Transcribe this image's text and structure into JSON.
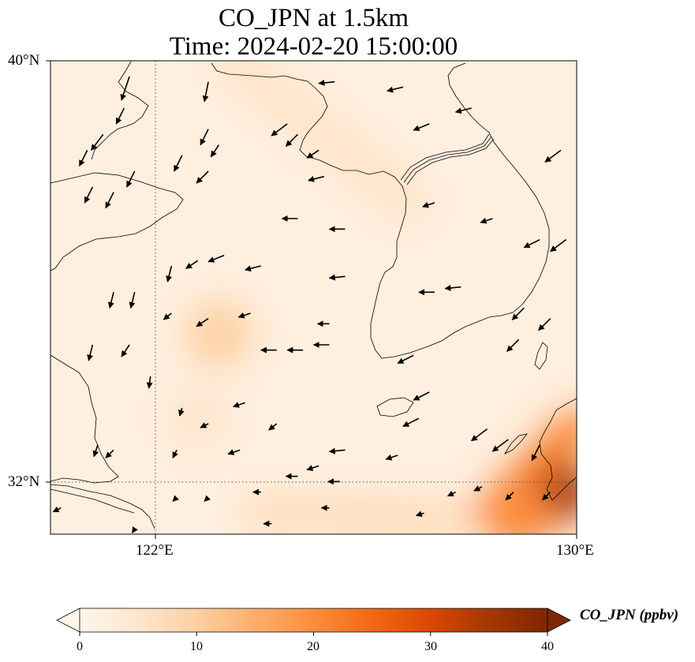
{
  "title": {
    "line1": "CO_JPN at 1.5km",
    "line2": "Time: 2024-02-20 15:00:00"
  },
  "map": {
    "lat_range": [
      31.0,
      40.0
    ],
    "lon_range": [
      120.0,
      130.0
    ],
    "lat_ticks": [
      {
        "value": 40,
        "label": "40°N"
      },
      {
        "value": 32,
        "label": "32°N"
      }
    ],
    "lon_ticks": [
      {
        "value": 122,
        "label": "122°E"
      },
      {
        "value": 130,
        "label": "130°E"
      }
    ],
    "gridlines": "dotted"
  },
  "colorbar": {
    "title": "CO_JPN (ppbv)",
    "min": 0,
    "max": 40,
    "extend": "both",
    "ticks": [
      "0",
      "10",
      "20",
      "30",
      "40"
    ],
    "colormap": [
      "#fff5eb",
      "#fee6ce",
      "#fdd0a2",
      "#fdae6b",
      "#fd8d3c",
      "#f16913",
      "#d94801",
      "#a63603",
      "#7f2704"
    ]
  },
  "chart_data": {
    "type": "heatmap",
    "variable": "CO_JPN",
    "units": "ppbv",
    "level": "1.5km",
    "time": "2024-02-20 15:00:00",
    "background_value": 2,
    "features": [
      {
        "shape": "band",
        "lon": [
          123.5,
          126.8
        ],
        "lat": [
          40.0,
          37.3
        ],
        "value": 6
      },
      {
        "shape": "blob",
        "lon": 123.2,
        "lat": 34.8,
        "value": 10
      },
      {
        "shape": "blob",
        "lon": 122.8,
        "lat": 33.2,
        "value": 5
      },
      {
        "shape": "band",
        "lon": [
          124.0,
          128.0
        ],
        "lat": [
          31.4,
          31.3
        ],
        "value": 7
      },
      {
        "shape": "band",
        "lon": [
          128.4,
          130.0
        ],
        "lat": [
          31.4,
          33.0
        ],
        "value": 22
      },
      {
        "shape": "blob",
        "lon": 129.8,
        "lat": 31.8,
        "value": 38
      },
      {
        "shape": "blob",
        "lon": 129.3,
        "lat": 31.5,
        "value": 32
      },
      {
        "shape": "blob",
        "lon": 128.9,
        "lat": 31.3,
        "value": 20
      }
    ],
    "wind_vectors": [
      {
        "lon": 121.5,
        "lat": 39.7,
        "u": -1,
        "v": -3
      },
      {
        "lon": 121.4,
        "lat": 39.1,
        "u": -1,
        "v": -2
      },
      {
        "lon": 123.0,
        "lat": 39.6,
        "u": -0.5,
        "v": -2.5
      },
      {
        "lon": 121.0,
        "lat": 38.6,
        "u": -1.5,
        "v": -2
      },
      {
        "lon": 120.7,
        "lat": 38.3,
        "u": -1,
        "v": -2
      },
      {
        "lon": 123.0,
        "lat": 38.7,
        "u": -1,
        "v": -2
      },
      {
        "lon": 122.5,
        "lat": 38.2,
        "u": -1,
        "v": -2
      },
      {
        "lon": 123.2,
        "lat": 38.4,
        "u": -1,
        "v": -1.5
      },
      {
        "lon": 124.5,
        "lat": 38.8,
        "u": -2,
        "v": -1.5
      },
      {
        "lon": 124.7,
        "lat": 38.6,
        "u": -1.5,
        "v": -1.5
      },
      {
        "lon": 123.0,
        "lat": 37.9,
        "u": -1.5,
        "v": -1.5
      },
      {
        "lon": 121.6,
        "lat": 37.9,
        "u": -1,
        "v": -2
      },
      {
        "lon": 120.8,
        "lat": 37.6,
        "u": -1,
        "v": -2
      },
      {
        "lon": 121.2,
        "lat": 37.5,
        "u": -1,
        "v": -2
      },
      {
        "lon": 125.4,
        "lat": 39.6,
        "u": -2,
        "v": -0.2
      },
      {
        "lon": 126.7,
        "lat": 39.5,
        "u": -2,
        "v": -0.5
      },
      {
        "lon": 128.0,
        "lat": 39.1,
        "u": -2,
        "v": -0.5
      },
      {
        "lon": 127.2,
        "lat": 38.8,
        "u": -2,
        "v": -0.8
      },
      {
        "lon": 125.1,
        "lat": 38.3,
        "u": -1.5,
        "v": -1
      },
      {
        "lon": 125.2,
        "lat": 37.8,
        "u": -2,
        "v": -0.5
      },
      {
        "lon": 129.7,
        "lat": 38.3,
        "u": -2,
        "v": -1.5
      },
      {
        "lon": 124.7,
        "lat": 37.0,
        "u": -2,
        "v": 0
      },
      {
        "lon": 125.6,
        "lat": 36.8,
        "u": -2,
        "v": 0
      },
      {
        "lon": 127.3,
        "lat": 37.3,
        "u": -1.5,
        "v": -0.5
      },
      {
        "lon": 128.4,
        "lat": 37.0,
        "u": -1.5,
        "v": -0.5
      },
      {
        "lon": 129.3,
        "lat": 36.6,
        "u": -2,
        "v": -1
      },
      {
        "lon": 129.8,
        "lat": 36.6,
        "u": -2,
        "v": -1.5
      },
      {
        "lon": 122.3,
        "lat": 36.1,
        "u": -0.5,
        "v": -2
      },
      {
        "lon": 122.8,
        "lat": 36.2,
        "u": -1.5,
        "v": -1
      },
      {
        "lon": 123.3,
        "lat": 36.3,
        "u": -2,
        "v": -0.8
      },
      {
        "lon": 124.0,
        "lat": 36.1,
        "u": -2,
        "v": -0.5
      },
      {
        "lon": 125.6,
        "lat": 35.9,
        "u": -2,
        "v": -0.2
      },
      {
        "lon": 121.2,
        "lat": 35.6,
        "u": -0.5,
        "v": -2
      },
      {
        "lon": 121.6,
        "lat": 35.6,
        "u": -0.5,
        "v": -2
      },
      {
        "lon": 122.3,
        "lat": 35.2,
        "u": -1,
        "v": -0.8
      },
      {
        "lon": 123.0,
        "lat": 35.1,
        "u": -1.5,
        "v": -1
      },
      {
        "lon": 123.8,
        "lat": 35.2,
        "u": -1.5,
        "v": -0.5
      },
      {
        "lon": 125.3,
        "lat": 35.0,
        "u": -1.5,
        "v": 0
      },
      {
        "lon": 127.3,
        "lat": 35.6,
        "u": -2,
        "v": 0
      },
      {
        "lon": 127.8,
        "lat": 35.7,
        "u": -2,
        "v": -0.2
      },
      {
        "lon": 129.0,
        "lat": 35.3,
        "u": -1.5,
        "v": -1.5
      },
      {
        "lon": 129.5,
        "lat": 35.1,
        "u": -1.5,
        "v": -1.5
      },
      {
        "lon": 128.9,
        "lat": 34.7,
        "u": -1.5,
        "v": -1.5
      },
      {
        "lon": 120.8,
        "lat": 34.6,
        "u": -0.5,
        "v": -2
      },
      {
        "lon": 121.5,
        "lat": 34.6,
        "u": -1,
        "v": -1.5
      },
      {
        "lon": 124.3,
        "lat": 34.5,
        "u": -2,
        "v": 0
      },
      {
        "lon": 124.8,
        "lat": 34.5,
        "u": -2,
        "v": 0
      },
      {
        "lon": 125.3,
        "lat": 34.6,
        "u": -2,
        "v": 0
      },
      {
        "lon": 126.9,
        "lat": 34.4,
        "u": -2,
        "v": -1
      },
      {
        "lon": 121.9,
        "lat": 34.0,
        "u": -0.2,
        "v": -1.5
      },
      {
        "lon": 122.5,
        "lat": 33.4,
        "u": -0.3,
        "v": -1
      },
      {
        "lon": 123.0,
        "lat": 33.1,
        "u": -1,
        "v": -0.5
      },
      {
        "lon": 123.7,
        "lat": 33.5,
        "u": -1.5,
        "v": -0.5
      },
      {
        "lon": 124.3,
        "lat": 33.1,
        "u": -1,
        "v": -0.8
      },
      {
        "lon": 127.2,
        "lat": 33.7,
        "u": -2,
        "v": -1
      },
      {
        "lon": 127.0,
        "lat": 33.2,
        "u": -2,
        "v": -1
      },
      {
        "lon": 128.3,
        "lat": 33.0,
        "u": -2,
        "v": -1.5
      },
      {
        "lon": 128.7,
        "lat": 32.8,
        "u": -2,
        "v": -1.5
      },
      {
        "lon": 129.3,
        "lat": 32.7,
        "u": -1,
        "v": -2
      },
      {
        "lon": 120.9,
        "lat": 32.7,
        "u": -0.5,
        "v": -1.5
      },
      {
        "lon": 121.2,
        "lat": 32.6,
        "u": -1,
        "v": -1
      },
      {
        "lon": 122.4,
        "lat": 32.6,
        "u": -0.5,
        "v": -1
      },
      {
        "lon": 123.6,
        "lat": 32.6,
        "u": -1.5,
        "v": -0.5
      },
      {
        "lon": 125.6,
        "lat": 32.6,
        "u": -2,
        "v": -0.2
      },
      {
        "lon": 126.6,
        "lat": 32.5,
        "u": -1.5,
        "v": -0.5
      },
      {
        "lon": 125.1,
        "lat": 32.3,
        "u": -1.5,
        "v": -0.5
      },
      {
        "lon": 124.7,
        "lat": 32.1,
        "u": -1.5,
        "v": 0
      },
      {
        "lon": 125.5,
        "lat": 32.0,
        "u": -1.5,
        "v": 0
      },
      {
        "lon": 124.0,
        "lat": 31.8,
        "u": -1,
        "v": 0
      },
      {
        "lon": 127.7,
        "lat": 31.8,
        "u": -1,
        "v": -0.5
      },
      {
        "lon": 128.2,
        "lat": 31.9,
        "u": -1,
        "v": -0.5
      },
      {
        "lon": 128.8,
        "lat": 31.8,
        "u": -1,
        "v": -1
      },
      {
        "lon": 129.5,
        "lat": 31.8,
        "u": -1,
        "v": -1
      },
      {
        "lon": 122.4,
        "lat": 31.7,
        "u": -0.5,
        "v": -0.5
      },
      {
        "lon": 123.0,
        "lat": 31.7,
        "u": -0.5,
        "v": -0.5
      },
      {
        "lon": 120.2,
        "lat": 31.5,
        "u": -1,
        "v": -0.5
      },
      {
        "lon": 121.6,
        "lat": 31.1,
        "u": -0.3,
        "v": -0.5
      },
      {
        "lon": 125.3,
        "lat": 31.5,
        "u": -1,
        "v": 0
      },
      {
        "lon": 124.2,
        "lat": 31.2,
        "u": -1,
        "v": 0
      },
      {
        "lon": 127.1,
        "lat": 31.4,
        "u": -1,
        "v": -0.3
      }
    ]
  }
}
